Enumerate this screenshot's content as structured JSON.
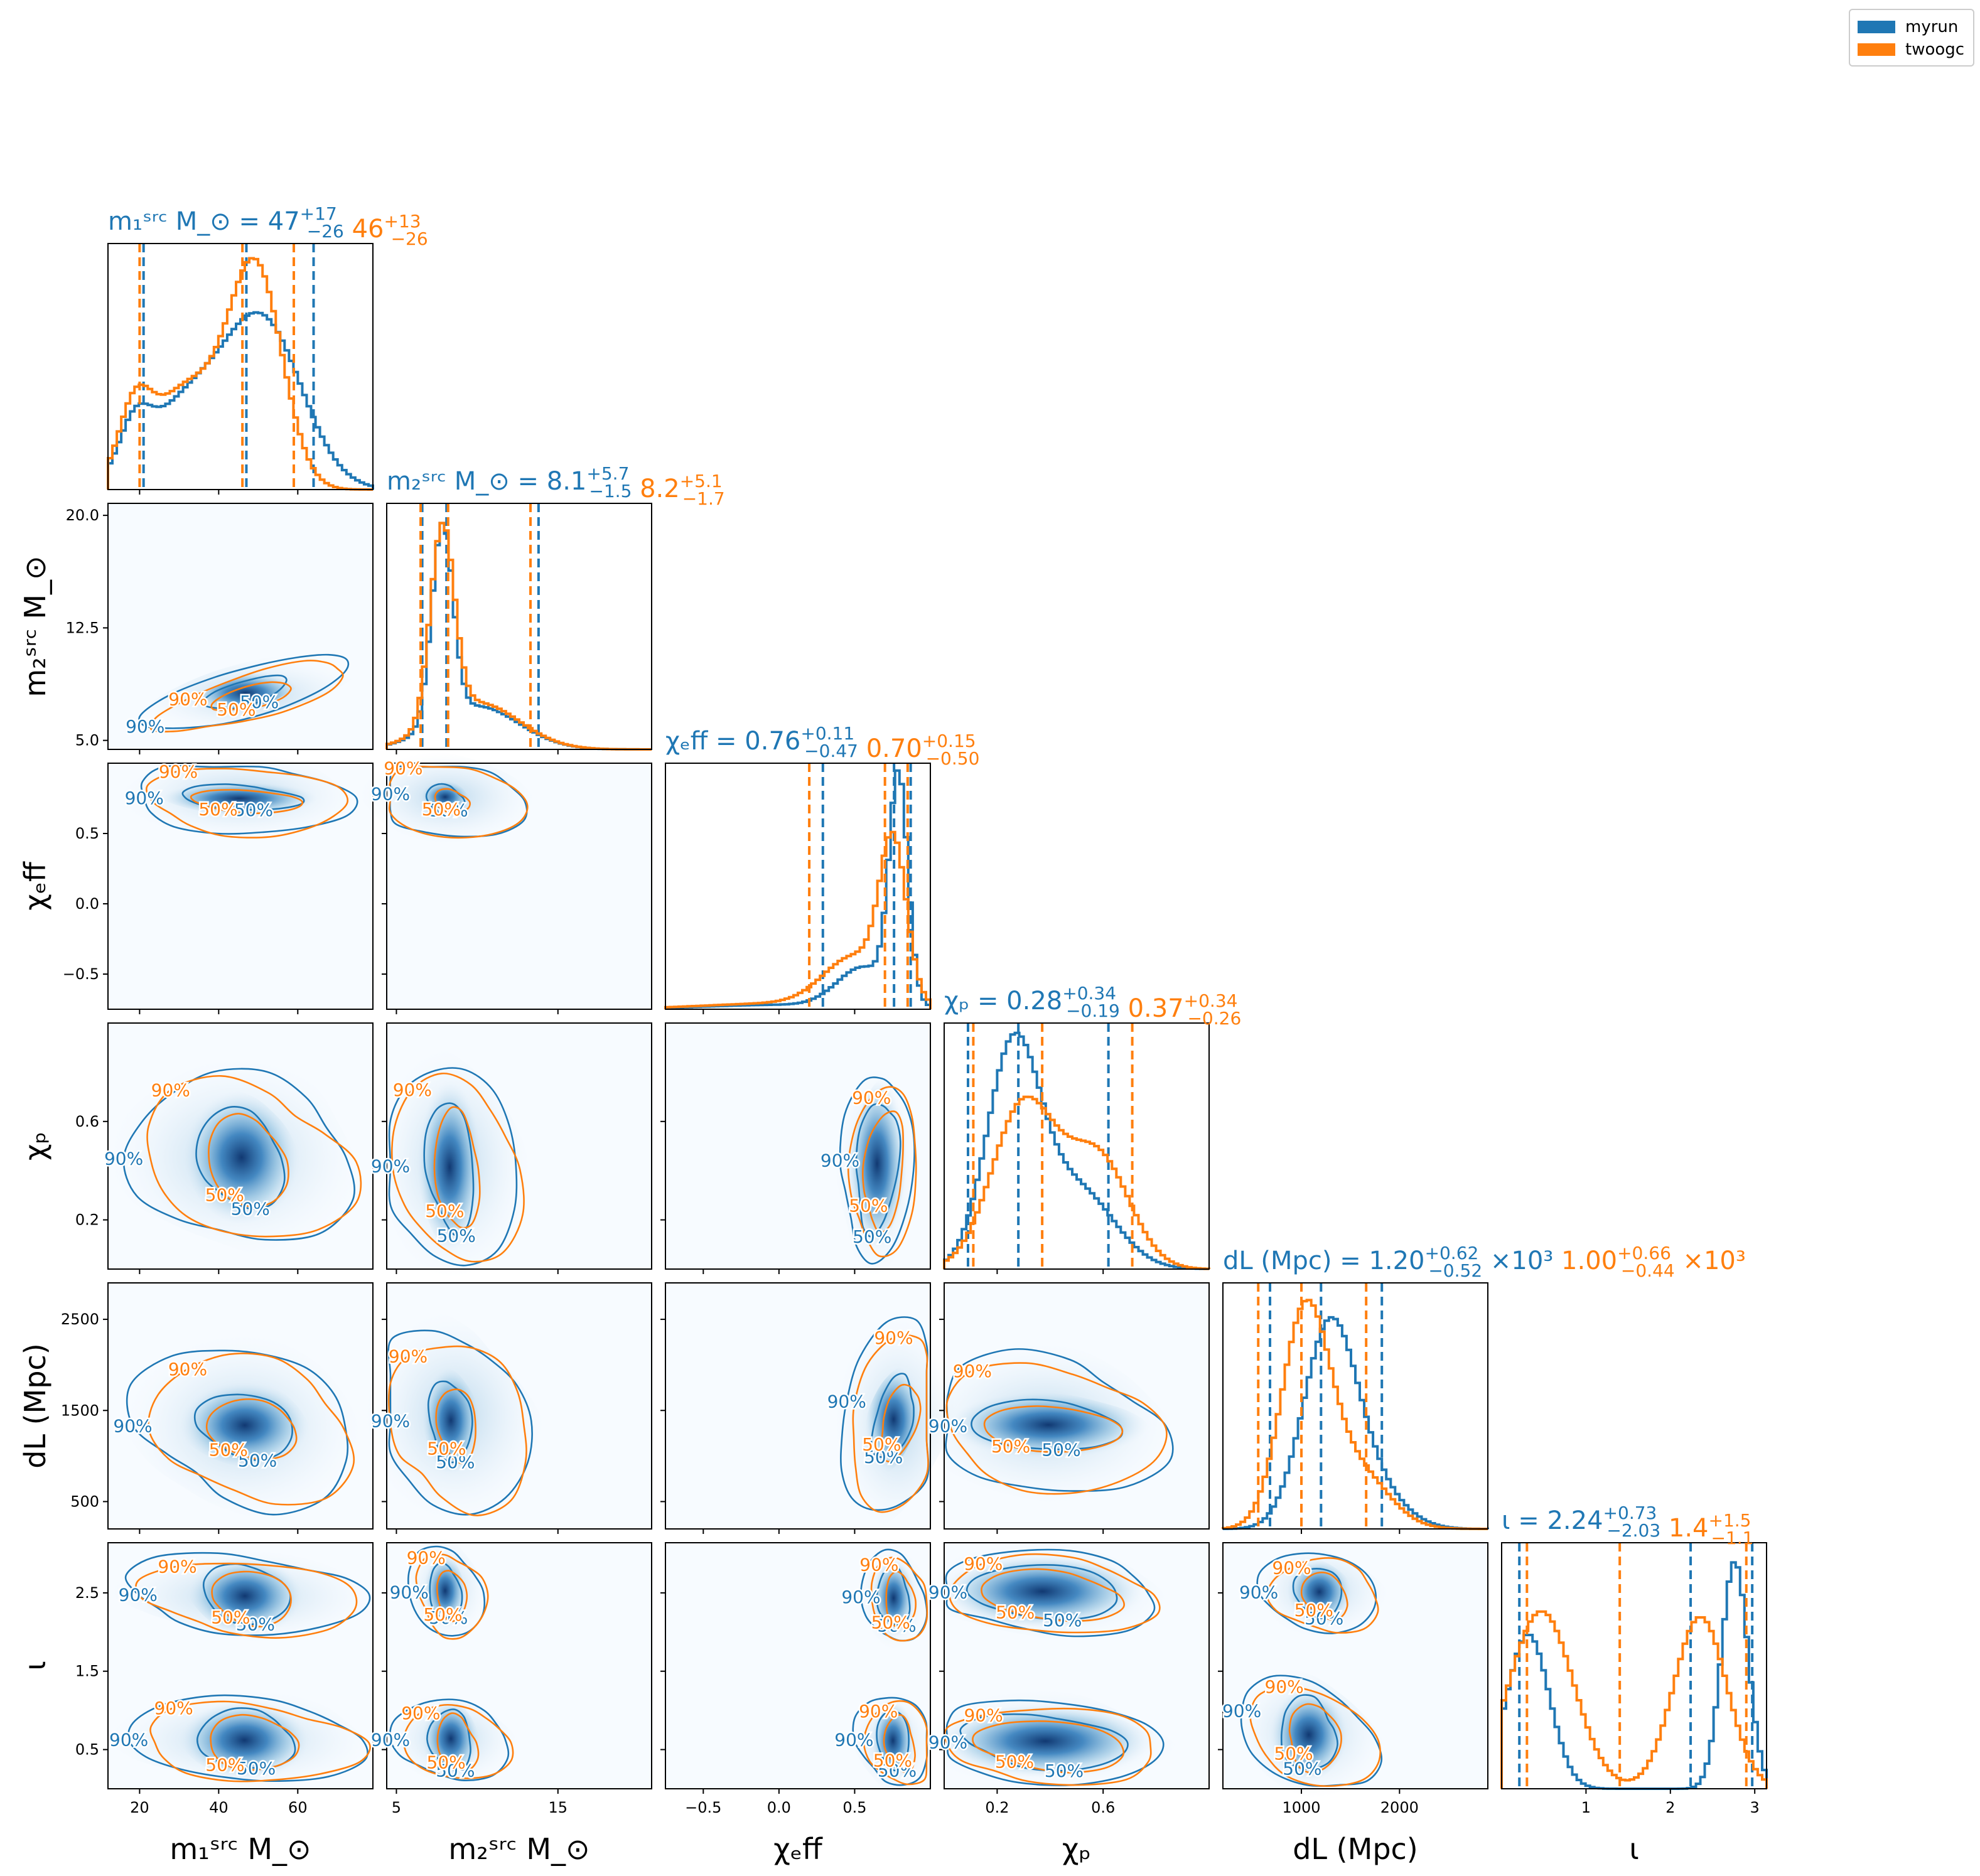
{
  "legend": {
    "entries": [
      {
        "name": "myrun",
        "color": "#1f77b4"
      },
      {
        "name": "twoogc",
        "color": "#ff7f0e"
      }
    ],
    "placement": "top-right"
  },
  "chart_data": {
    "type": "corner",
    "parameters": [
      {
        "key": "m1",
        "label": "m_1^src M_⊙",
        "range": [
          12,
          79
        ],
        "ticks": [
          20,
          40,
          60
        ],
        "tick_labels": [
          "20",
          "40",
          "60"
        ]
      },
      {
        "key": "m2",
        "label": "m_2^src M_⊙",
        "range": [
          4.4,
          20.8
        ],
        "ticks": [
          5,
          15
        ],
        "tick_labels": [
          "5",
          "15"
        ],
        "y_ticks": [
          5.0,
          12.5,
          20.0
        ],
        "y_tick_labels": [
          "5.0",
          "12.5",
          "20.0"
        ]
      },
      {
        "key": "chi_eff",
        "label": "χ_eff",
        "range": [
          -0.75,
          1.0
        ],
        "ticks": [
          -0.5,
          0.0,
          0.5
        ],
        "tick_labels": [
          "−0.5",
          "0.0",
          "0.5"
        ]
      },
      {
        "key": "chi_p",
        "label": "χ_p",
        "range": [
          0.0,
          1.0
        ],
        "ticks": [
          0.2,
          0.6
        ],
        "tick_labels": [
          "0.2",
          "0.6"
        ]
      },
      {
        "key": "d_L",
        "label": "d_L (Mpc)",
        "range": [
          200,
          2900
        ],
        "ticks": [
          1000,
          2000
        ],
        "tick_labels": [
          "1000",
          "2000"
        ],
        "y_ticks": [
          500,
          1500,
          2500
        ],
        "y_tick_labels": [
          "500",
          "1500",
          "2500"
        ]
      },
      {
        "key": "iota",
        "label": "ι",
        "range": [
          0.0,
          3.14
        ],
        "ticks": [
          1,
          2,
          3
        ],
        "tick_labels": [
          "1",
          "2",
          "3"
        ],
        "y_ticks": [
          0.5,
          1.5,
          2.5
        ],
        "y_tick_labels": [
          "0.5",
          "1.5",
          "2.5"
        ]
      }
    ],
    "y_labels_left": [
      "m_2^src M_⊙",
      "χ_eff",
      "χ_p",
      "d_L (Mpc)",
      "ι"
    ],
    "series": [
      {
        "name": "myrun",
        "color": "#1f77b4",
        "summary": [
          {
            "median": "47",
            "plus": "+17",
            "minus": "−26",
            "value": 47,
            "lo": 21,
            "hi": 64
          },
          {
            "median": "8.1",
            "plus": "+5.7",
            "minus": "−1.5",
            "value": 8.1,
            "lo": 6.6,
            "hi": 13.8
          },
          {
            "median": "0.76",
            "plus": "+0.11",
            "minus": "−0.47",
            "value": 0.76,
            "lo": 0.29,
            "hi": 0.87
          },
          {
            "median": "0.28",
            "plus": "+0.34",
            "minus": "−0.19",
            "value": 0.28,
            "lo": 0.09,
            "hi": 0.62
          },
          {
            "median": "1.20",
            "plus": "+0.62",
            "minus": "−0.52",
            "suffix": "×10³",
            "value": 1200,
            "lo": 680,
            "hi": 1820
          },
          {
            "median": "2.24",
            "plus": "+0.73",
            "minus": "−2.03",
            "value": 2.24,
            "lo": 0.21,
            "hi": 2.97
          }
        ]
      },
      {
        "name": "twoogc",
        "color": "#ff7f0e",
        "summary": [
          {
            "median": "46",
            "plus": "+13",
            "minus": "−26",
            "value": 46,
            "lo": 20,
            "hi": 59
          },
          {
            "median": "8.2",
            "plus": "+5.1",
            "minus": "−1.7",
            "value": 8.2,
            "lo": 6.5,
            "hi": 13.3
          },
          {
            "median": "0.70",
            "plus": "+0.15",
            "minus": "−0.50",
            "value": 0.7,
            "lo": 0.2,
            "hi": 0.85
          },
          {
            "median": "0.37",
            "plus": "+0.34",
            "minus": "−0.26",
            "value": 0.37,
            "lo": 0.11,
            "hi": 0.71
          },
          {
            "median": "1.00",
            "plus": "+0.66",
            "minus": "−0.44",
            "suffix": "×10³",
            "value": 1000,
            "lo": 560,
            "hi": 1660
          },
          {
            "median": "1.4",
            "plus": "+1.5",
            "minus": "−1.1",
            "value": 1.4,
            "lo": 0.3,
            "hi": 2.9
          }
        ]
      }
    ],
    "contour_labels": [
      "50%",
      "90%"
    ]
  }
}
